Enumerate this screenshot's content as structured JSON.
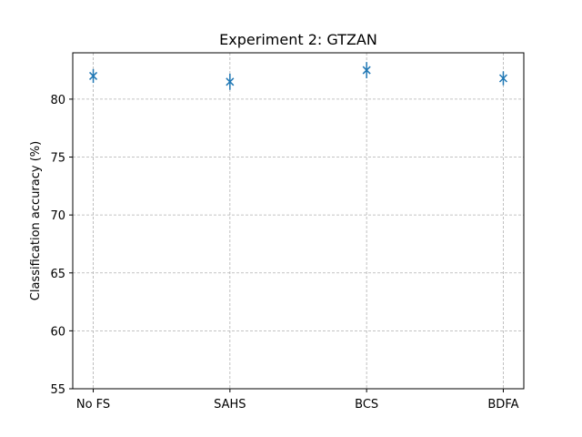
{
  "chart_data": {
    "type": "scatter",
    "title": "Experiment 2: GTZAN",
    "xlabel": "",
    "ylabel": "Classification accuracy (%)",
    "categories": [
      "No FS",
      "SAHS",
      "BCS",
      "BDFA"
    ],
    "series": [
      {
        "values": [
          82.0,
          81.5,
          82.5,
          81.8
        ],
        "error": [
          0.6,
          0.7,
          0.7,
          0.6
        ],
        "marker": "x",
        "color": "#1f77b4"
      }
    ],
    "ylim": [
      55,
      84
    ],
    "yticks": [
      55,
      60,
      65,
      70,
      75,
      80
    ],
    "grid": true,
    "grid_style": "dashed",
    "grid_color": "#b0b0b0",
    "axis_color": "#000000"
  }
}
